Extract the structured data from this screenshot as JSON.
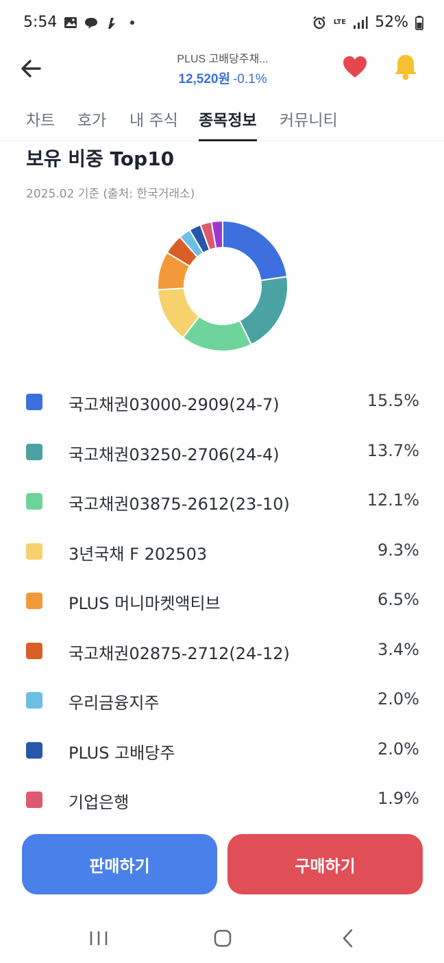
{
  "status": {
    "time": "5:54",
    "battery": "52%",
    "network": "LTE"
  },
  "header": {
    "title": "PLUS 고배당주채...",
    "price": "12,520원",
    "change": "-0.1%",
    "price_color": "#3b6fd6"
  },
  "tabs": [
    {
      "label": "차트"
    },
    {
      "label": "호가"
    },
    {
      "label": "내 주식"
    },
    {
      "label": "종목정보",
      "active": true
    },
    {
      "label": "커뮤니티"
    }
  ],
  "section": {
    "title": "보유 비중 Top10",
    "subtitle": "2025.02 기준 (출처: 한국거래소)"
  },
  "chart_data": {
    "type": "pie",
    "title": "보유 비중 Top10",
    "categories": [
      "국고채권03000-2909(24-7)",
      "국고채권03250-2706(24-4)",
      "국고채권03875-2612(23-10)",
      "3년국채 F 202503",
      "PLUS 머니마켓액티브",
      "국고채권02875-2712(24-12)",
      "우리금융지주",
      "PLUS 고배당주",
      "기업은행",
      ""
    ],
    "values": [
      15.5,
      13.7,
      12.1,
      9.3,
      6.5,
      3.4,
      2.0,
      2.0,
      1.9,
      1.9
    ],
    "colors": [
      "#3e6fdf",
      "#4aa3a2",
      "#6fd49a",
      "#f7d26c",
      "#f29a3a",
      "#d95f26",
      "#6bbfe4",
      "#2757a8",
      "#dd5b70",
      "#9d37d2"
    ]
  },
  "holdings": [
    {
      "name": "국고채권03000-2909(24-7)",
      "value": "15.5%",
      "color": "#3e6fdf"
    },
    {
      "name": "국고채권03250-2706(24-4)",
      "value": "13.7%",
      "color": "#4aa3a2"
    },
    {
      "name": "국고채권03875-2612(23-10)",
      "value": "12.1%",
      "color": "#6fd49a"
    },
    {
      "name": "3년국채 F 202503",
      "value": "9.3%",
      "color": "#f7d26c"
    },
    {
      "name": "PLUS 머니마켓액티브",
      "value": "6.5%",
      "color": "#f29a3a"
    },
    {
      "name": "국고채권02875-2712(24-12)",
      "value": "3.4%",
      "color": "#d95f26"
    },
    {
      "name": "우리금융지주",
      "value": "2.0%",
      "color": "#6bbfe4"
    },
    {
      "name": "PLUS 고배당주",
      "value": "2.0%",
      "color": "#2757a8"
    },
    {
      "name": "기업은행",
      "value": "1.9%",
      "color": "#dd5b70"
    }
  ],
  "buttons": {
    "sell": "판매하기",
    "buy": "구매하기",
    "sell_color": "#4a80ea",
    "buy_color": "#e04f57"
  },
  "icons": {
    "back": "arrow-left-icon",
    "favorite": "heart-icon",
    "alert": "bell-icon"
  }
}
